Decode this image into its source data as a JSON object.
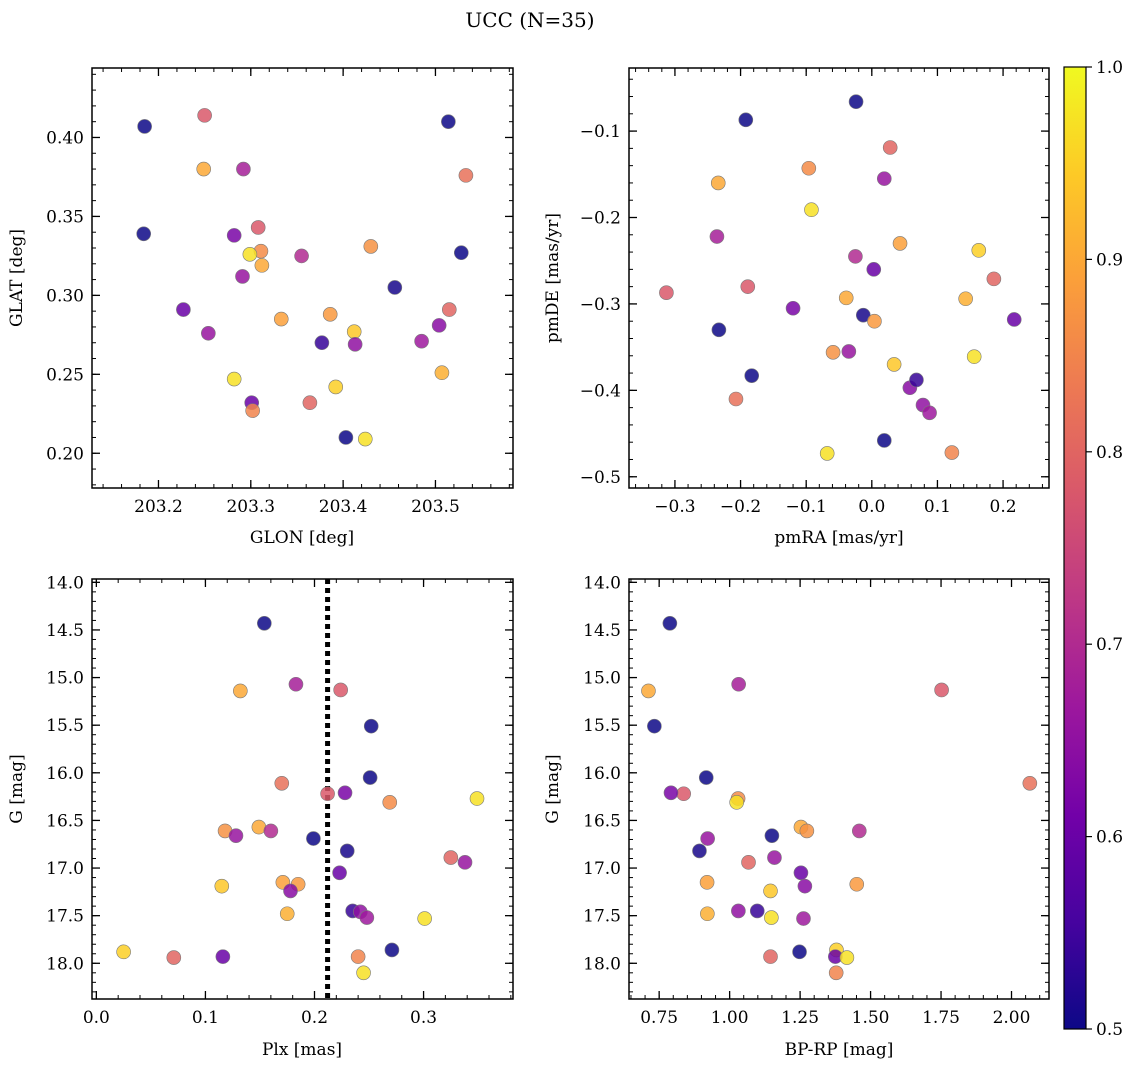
{
  "figure": {
    "title": "UCC (N=35)"
  },
  "colorbar": {
    "range": [
      0.5,
      1.0
    ],
    "ticks": [
      0.5,
      0.6,
      0.7,
      0.8,
      0.9,
      1.0
    ],
    "tick_labels": [
      "0.5",
      "0.6",
      "0.7",
      "0.8",
      "0.9",
      "1.0"
    ],
    "colormap": "plasma",
    "stops": [
      "#0d0887",
      "#46039f",
      "#7201a8",
      "#9c179e",
      "#bd3786",
      "#d8576b",
      "#ed7953",
      "#fb9f3a",
      "#fdca26",
      "#f0f921"
    ]
  },
  "chart_data": [
    {
      "id": "glon-glat",
      "type": "scatter",
      "xlabel": "GLON [deg]",
      "ylabel": "GLAT [deg]",
      "xlim": [
        203.128,
        203.584
      ],
      "ylim": [
        0.178,
        0.444
      ],
      "y_inverted": false,
      "xticks": [
        203.2,
        203.3,
        203.4,
        203.5
      ],
      "xtick_labels": [
        "203.2",
        "203.3",
        "203.4",
        "203.5"
      ],
      "yticks": [
        0.2,
        0.25,
        0.3,
        0.35,
        0.4
      ],
      "ytick_labels": [
        "0.20",
        "0.25",
        "0.30",
        "0.35",
        "0.40"
      ],
      "x": [
        203.185,
        203.249,
        203.292,
        203.25,
        203.184,
        203.514,
        203.533,
        203.308,
        203.282,
        203.311,
        203.299,
        203.312,
        203.355,
        203.43,
        203.291,
        203.528,
        203.456,
        203.227,
        203.515,
        203.254,
        203.333,
        203.386,
        203.412,
        203.504,
        203.377,
        203.413,
        203.485,
        203.507,
        203.282,
        203.392,
        203.364,
        203.301,
        203.302,
        203.403,
        203.424
      ],
      "y": [
        0.407,
        0.38,
        0.38,
        0.414,
        0.339,
        0.41,
        0.376,
        0.343,
        0.338,
        0.328,
        0.326,
        0.319,
        0.325,
        0.331,
        0.312,
        0.327,
        0.305,
        0.291,
        0.291,
        0.276,
        0.285,
        0.288,
        0.277,
        0.281,
        0.27,
        0.269,
        0.271,
        0.251,
        0.247,
        0.242,
        0.232,
        0.232,
        0.227,
        0.21,
        0.209
      ]
    },
    {
      "id": "pm",
      "type": "scatter",
      "xlabel": "pmRA [mas/yr]",
      "ylabel": "pmDE [mas/yr]",
      "xlim": [
        -0.37,
        0.27
      ],
      "ylim": [
        -0.513,
        -0.027
      ],
      "y_inverted": false,
      "xticks": [
        -0.3,
        -0.2,
        -0.1,
        0.0,
        0.1,
        0.2
      ],
      "xtick_labels": [
        "−0.3",
        "−0.2",
        "−0.1",
        "0.0",
        "0.1",
        "0.2"
      ],
      "yticks": [
        -0.5,
        -0.4,
        -0.3,
        -0.2,
        -0.1
      ],
      "ytick_labels": [
        "−0.5",
        "−0.4",
        "−0.3",
        "−0.2",
        "−0.1"
      ],
      "x": [
        -0.192,
        -0.234,
        -0.236,
        -0.189,
        -0.233,
        -0.183,
        -0.207,
        -0.313,
        -0.12,
        -0.096,
        -0.092,
        -0.039,
        -0.025,
        -0.059,
        -0.035,
        -0.024,
        -0.013,
        0.003,
        0.028,
        0.019,
        0.043,
        0.004,
        0.034,
        0.058,
        0.068,
        0.078,
        0.088,
        0.143,
        0.156,
        0.163,
        0.186,
        0.217,
        0.122,
        0.019,
        -0.068
      ],
      "y": [
        -0.087,
        -0.16,
        -0.222,
        -0.28,
        -0.33,
        -0.383,
        -0.41,
        -0.287,
        -0.305,
        -0.143,
        -0.191,
        -0.293,
        -0.245,
        -0.356,
        -0.355,
        -0.066,
        -0.313,
        -0.26,
        -0.119,
        -0.155,
        -0.23,
        -0.32,
        -0.37,
        -0.397,
        -0.388,
        -0.417,
        -0.426,
        -0.294,
        -0.361,
        -0.238,
        -0.271,
        -0.318,
        -0.472,
        -0.458,
        -0.473
      ]
    },
    {
      "id": "plx-g",
      "type": "scatter",
      "xlabel": "Plx [mas]",
      "ylabel": "G [mag]",
      "xlim": [
        -0.004,
        0.382
      ],
      "ylim": [
        18.375,
        13.965
      ],
      "y_inverted": true,
      "vline": 0.212,
      "xticks": [
        0.0,
        0.1,
        0.2,
        0.3
      ],
      "xtick_labels": [
        "0.0",
        "0.1",
        "0.2",
        "0.3"
      ],
      "yticks": [
        14.0,
        14.5,
        15.0,
        15.5,
        16.0,
        16.5,
        17.0,
        17.5,
        18.0
      ],
      "ytick_labels": [
        "14.0",
        "14.5",
        "15.0",
        "15.5",
        "16.0",
        "16.5",
        "17.0",
        "17.5",
        "18.0"
      ],
      "x": [
        0.154,
        0.132,
        0.183,
        0.224,
        0.252,
        0.251,
        0.17,
        0.212,
        0.228,
        0.269,
        0.349,
        0.149,
        0.16,
        0.118,
        0.128,
        0.199,
        0.23,
        0.223,
        0.325,
        0.338,
        0.171,
        0.185,
        0.115,
        0.178,
        0.235,
        0.242,
        0.248,
        0.175,
        0.301,
        0.025,
        0.071,
        0.116,
        0.24,
        0.271,
        0.245
      ],
      "y": [
        14.43,
        15.14,
        15.07,
        15.13,
        15.51,
        16.05,
        16.11,
        16.22,
        16.21,
        16.31,
        16.27,
        16.57,
        16.61,
        16.61,
        16.66,
        16.69,
        16.82,
        17.05,
        16.89,
        16.94,
        17.15,
        17.17,
        17.19,
        17.24,
        17.45,
        17.46,
        17.52,
        17.48,
        17.53,
        17.88,
        17.94,
        17.93,
        17.93,
        17.86,
        18.1
      ]
    },
    {
      "id": "color-g",
      "type": "scatter",
      "xlabel": "BP-RP [mag]",
      "ylabel": "G [mag]",
      "xlim": [
        0.643,
        2.133
      ],
      "ylim": [
        18.375,
        13.965
      ],
      "y_inverted": true,
      "xticks": [
        0.75,
        1.0,
        1.25,
        1.5,
        1.75,
        2.0
      ],
      "xtick_labels": [
        "0.75",
        "1.00",
        "1.25",
        "1.50",
        "1.75",
        "2.00"
      ],
      "yticks": [
        14.0,
        14.5,
        15.0,
        15.5,
        16.0,
        16.5,
        17.0,
        17.5,
        18.0
      ],
      "ytick_labels": [
        "14.0",
        "14.5",
        "15.0",
        "15.5",
        "16.0",
        "16.5",
        "17.0",
        "17.5",
        "18.0"
      ],
      "x": [
        0.788,
        0.712,
        1.032,
        1.752,
        0.733,
        0.917,
        2.065,
        0.837,
        0.792,
        1.03,
        1.025,
        1.253,
        1.46,
        1.274,
        0.922,
        1.15,
        0.893,
        1.253,
        1.067,
        1.159,
        0.92,
        1.451,
        1.145,
        1.267,
        1.098,
        1.031,
        1.262,
        0.921,
        1.148,
        1.379,
        1.145,
        1.375,
        1.378,
        1.248,
        1.416
      ],
      "y": [
        14.43,
        15.14,
        15.07,
        15.13,
        15.51,
        16.05,
        16.11,
        16.22,
        16.21,
        16.27,
        16.31,
        16.57,
        16.61,
        16.61,
        16.69,
        16.66,
        16.82,
        17.05,
        16.94,
        16.89,
        17.15,
        17.17,
        17.24,
        17.19,
        17.45,
        17.45,
        17.53,
        17.48,
        17.52,
        17.86,
        17.93,
        17.93,
        18.1,
        17.88,
        17.94
      ]
    }
  ],
  "point_colors": [
    0.5,
    0.9,
    0.68,
    0.78,
    0.5,
    0.5,
    0.82,
    0.78,
    0.62,
    0.86,
    0.97,
    0.9,
    0.7,
    0.87,
    0.66,
    0.5,
    0.51,
    0.6,
    0.8,
    0.66,
    0.89,
    0.88,
    0.94,
    0.64,
    0.54,
    0.65,
    0.67,
    0.91,
    0.97,
    0.95,
    0.8,
    0.6,
    0.85,
    0.5,
    0.97
  ]
}
